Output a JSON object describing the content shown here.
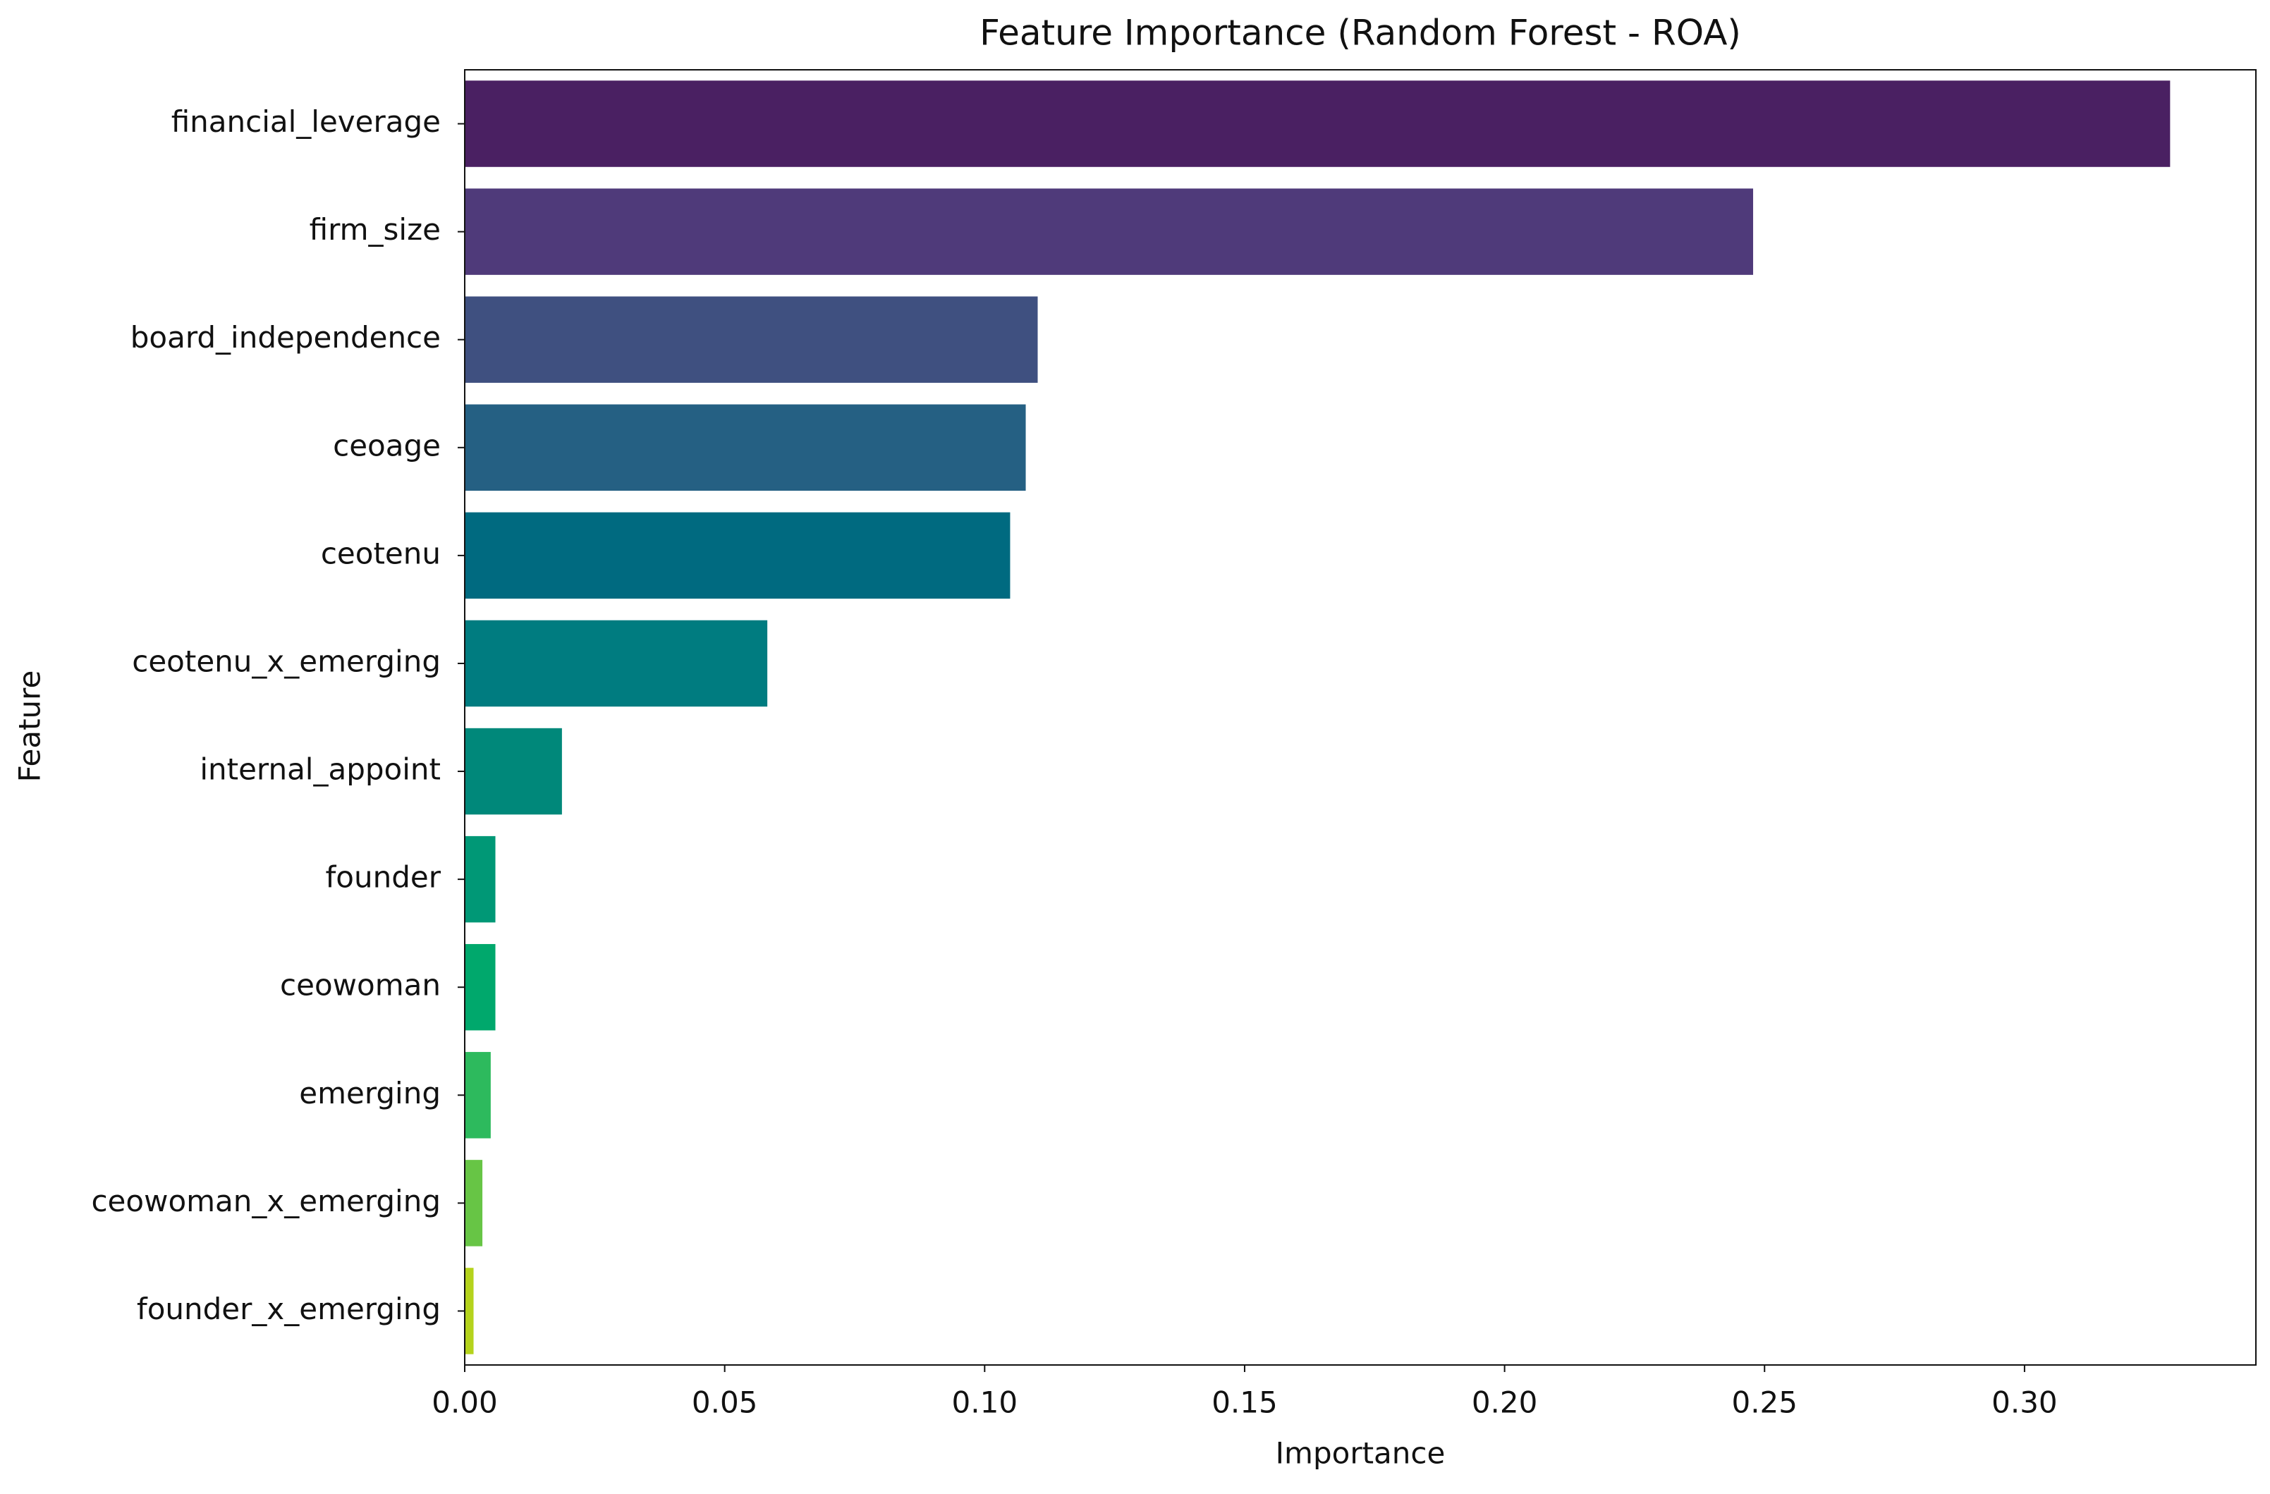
{
  "chart_data": {
    "type": "barh",
    "title": "Feature Importance (Random Forest - ROA)",
    "xlabel": "Importance",
    "ylabel": "Feature",
    "categories": [
      "financial_leverage",
      "firm_size",
      "board_independence",
      "ceoage",
      "ceotenu",
      "ceotenu_x_emerging",
      "internal_appoint",
      "founder",
      "ceowoman",
      "emerging",
      "ceowoman_x_emerging",
      "founder_x_emerging"
    ],
    "values": [
      0.328,
      0.2478,
      0.1102,
      0.1079,
      0.1049,
      0.0582,
      0.0187,
      0.0059,
      0.0059,
      0.005,
      0.0034,
      0.0017
    ],
    "colors": [
      "#4a2062",
      "#4f3a7a",
      "#3f5080",
      "#256083",
      "#006a80",
      "#007c80",
      "#00887a",
      "#009876",
      "#00a86c",
      "#2dba5d",
      "#67c545",
      "#b5d31c"
    ],
    "xlim": [
      0,
      0.3445
    ],
    "xticks": [
      {
        "value": 0,
        "label": "0.00"
      },
      {
        "value": 0.05,
        "label": "0.05"
      },
      {
        "value": 0.1,
        "label": "0.10"
      },
      {
        "value": 0.15,
        "label": "0.15"
      },
      {
        "value": 0.2,
        "label": "0.20"
      },
      {
        "value": 0.25,
        "label": "0.25"
      },
      {
        "value": 0.3,
        "label": "0.30"
      }
    ]
  }
}
